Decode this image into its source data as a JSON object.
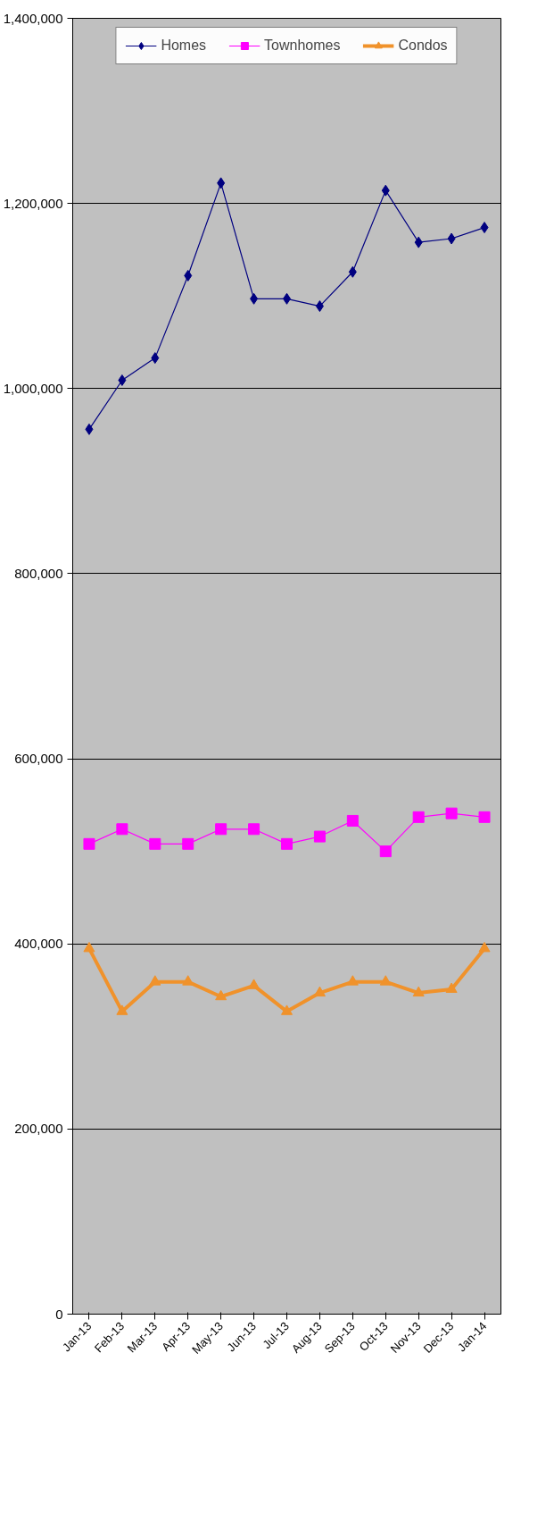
{
  "chart_data": {
    "type": "line",
    "categories": [
      "Jan-13",
      "Feb-13",
      "Mar-13",
      "Apr-13",
      "May-13",
      "Jun-13",
      "Jul-13",
      "Aug-13",
      "Sep-13",
      "Oct-13",
      "Nov-13",
      "Dec-13",
      "Jan-14"
    ],
    "series": [
      {
        "name": "Homes",
        "color": "#000080",
        "marker": "diamond",
        "values": [
          956000,
          1009000,
          1033000,
          1122000,
          1222000,
          1097000,
          1097000,
          1089000,
          1126000,
          1214000,
          1158000,
          1162000,
          1174000
        ]
      },
      {
        "name": "Townhomes",
        "color": "#ff00ff",
        "marker": "square",
        "values": [
          508000,
          524000,
          508000,
          508000,
          524000,
          524000,
          508000,
          516000,
          533000,
          500000,
          537000,
          541000,
          537000
        ]
      },
      {
        "name": "Condos",
        "color": "#f0922b",
        "marker": "triangle",
        "values": [
          395000,
          327000,
          359000,
          359000,
          343000,
          355000,
          327000,
          347000,
          359000,
          359000,
          347000,
          351000,
          395000
        ]
      }
    ],
    "ylim": [
      0,
      1400000
    ],
    "yticks": [
      0,
      {
        "value": 200000,
        "label": "200,000"
      },
      {
        "value": 400000,
        "label": "400,000"
      },
      {
        "value": 600000,
        "label": "600,000"
      },
      {
        "value": 800000,
        "label": "800,000"
      },
      {
        "value": 1000000,
        "label": "1,000,000"
      },
      {
        "value": 1200000,
        "label": "1,200,000"
      },
      {
        "value": 1400000,
        "label": "1,400,000"
      }
    ],
    "grid": "y",
    "legend": "top",
    "line_style": "solid"
  }
}
